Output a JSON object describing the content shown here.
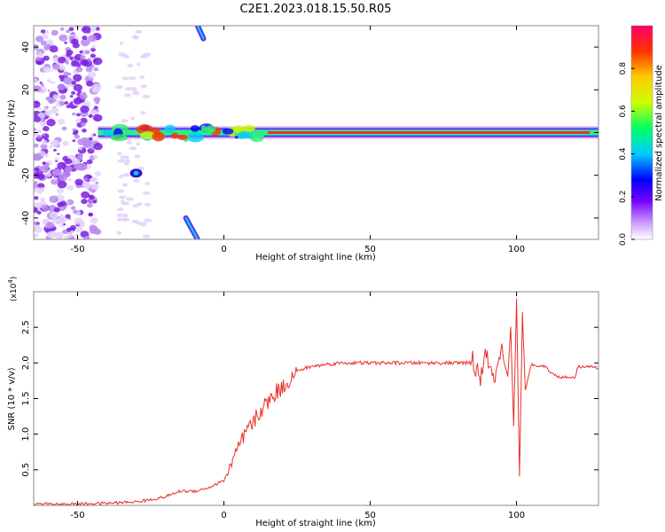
{
  "chart_data": [
    {
      "type": "heatmap",
      "title": "C2E1.2023.018.15.50.R05",
      "xlabel": "Height of straight line (km)",
      "ylabel": "Frequency (Hz)",
      "xlim": [
        -65,
        128
      ],
      "ylim": [
        -50,
        50
      ],
      "xticks": [
        -50,
        0,
        50,
        100
      ],
      "yticks": [
        -40,
        -20,
        0,
        20,
        40
      ],
      "colorbar": {
        "label": "Normalized spectral amplitude",
        "range": [
          0,
          1
        ],
        "ticks": [
          0.0,
          0.2,
          0.4,
          0.6,
          0.8
        ],
        "colormap": [
          "#ffffff",
          "#cc99ff",
          "#7700ff",
          "#0000ff",
          "#00ccff",
          "#00ff66",
          "#ccff00",
          "#ffcc00",
          "#ff3300",
          "#ff0066"
        ]
      },
      "features": [
        {
          "name": "zero-frequency band",
          "x_range": [
            -43,
            128
          ],
          "frequency": 0,
          "amplitude": 0.85
        },
        {
          "name": "scattered low-amplitude noise",
          "x_range": [
            -65,
            -43
          ],
          "frequency_range": [
            -50,
            50
          ],
          "amplitude": 0.15
        },
        {
          "name": "upper streak",
          "from": [
            -9,
            50
          ],
          "to": [
            -7,
            44
          ]
        },
        {
          "name": "lower streak",
          "from": [
            -13,
            -40
          ],
          "to": [
            -9,
            -50
          ]
        },
        {
          "name": "mid lower blob",
          "x": -30,
          "frequency": -19
        }
      ]
    },
    {
      "type": "line",
      "xlabel": "Height of straight line (km)",
      "ylabel": "SNR (10 * v/v)",
      "y_scale_label": "(x10",
      "y_scale_exponent": "4",
      "xlim": [
        -65,
        128
      ],
      "ylim": [
        0,
        3.0
      ],
      "xticks": [
        -50,
        0,
        50,
        100
      ],
      "yticks": [
        0.5,
        1.0,
        1.5,
        2.0,
        2.5
      ],
      "color": "#e8302a",
      "series": [
        {
          "x": [
            -65,
            -50,
            -40,
            -35,
            -30,
            -25,
            -20,
            -15,
            -10,
            -5,
            0,
            5,
            8,
            10,
            12,
            15,
            18,
            20,
            22,
            25,
            28,
            30,
            35,
            40,
            50,
            60,
            70,
            80,
            85,
            88,
            90,
            92,
            95,
            97,
            98,
            99,
            100,
            101,
            102,
            103,
            105,
            110,
            112,
            115,
            118,
            120,
            121,
            125,
            128
          ],
          "y": [
            0.02,
            0.02,
            0.03,
            0.04,
            0.05,
            0.08,
            0.12,
            0.2,
            0.2,
            0.25,
            0.35,
            0.8,
            1.05,
            1.15,
            1.3,
            1.45,
            1.6,
            1.65,
            1.75,
            1.88,
            1.93,
            1.95,
            1.98,
            2.0,
            2.0,
            2.0,
            2.0,
            2.0,
            2.0,
            1.8,
            2.15,
            1.7,
            2.1,
            1.8,
            2.5,
            1.1,
            2.9,
            0.4,
            2.7,
            1.6,
            1.98,
            1.95,
            1.85,
            1.8,
            1.8,
            1.8,
            1.95,
            1.95,
            1.93
          ]
        }
      ]
    }
  ]
}
